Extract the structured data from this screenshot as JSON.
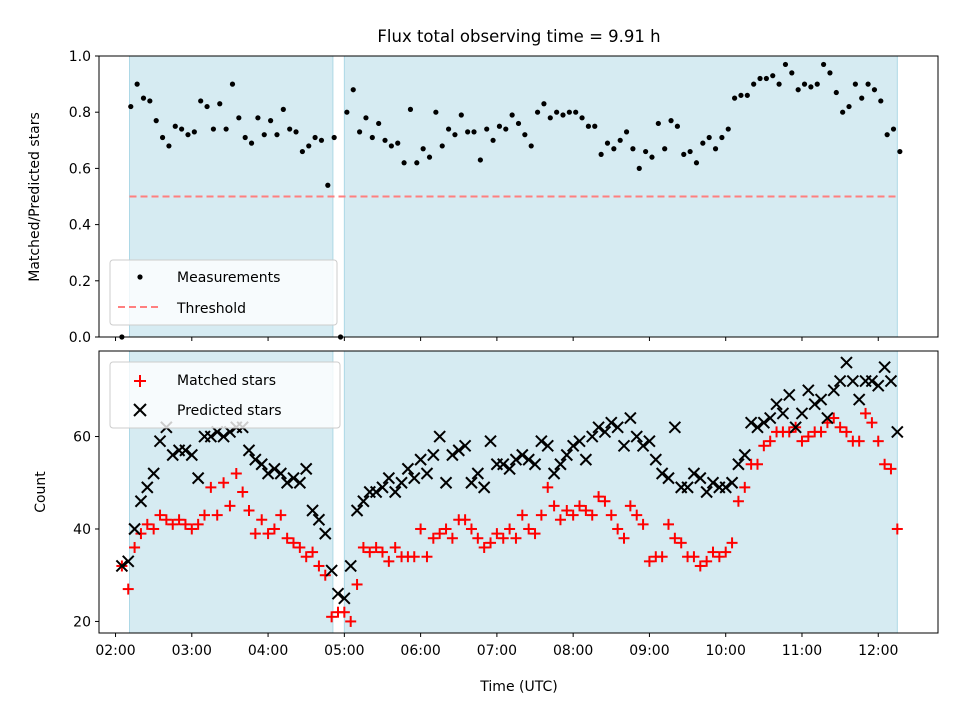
{
  "figure": {
    "title": "Flux total observing time = 9.91 h",
    "xlabel": "Time (UTC)",
    "colors": {
      "band": "#add8e6",
      "measurement": "#000000",
      "threshold": "#ff7f7f",
      "matched": "#ff0000",
      "predicted": "#000000"
    }
  },
  "chart_data": [
    {
      "type": "scatter",
      "panel": "ratio",
      "ylabel": "Matched/Predicted stars",
      "xlim": [
        "01:47",
        "12:47"
      ],
      "ylim": [
        0,
        1.0
      ],
      "xticks": [
        "02:00",
        "03:00",
        "04:00",
        "05:00",
        "06:00",
        "07:00",
        "08:00",
        "09:00",
        "10:00",
        "11:00",
        "12:00"
      ],
      "yticks": [
        "0.0",
        "0.2",
        "0.4",
        "0.6",
        "0.8",
        "1.0"
      ],
      "legend": "lower-left",
      "observing_windows": [
        [
          "02:11",
          "04:51"
        ],
        [
          "05:00",
          "12:15"
        ]
      ],
      "threshold": {
        "name": "Threshold",
        "y": 0.5,
        "x": [
          "02:11",
          "12:15"
        ]
      },
      "series": [
        {
          "name": "Measurements",
          "x": [
            "02:05",
            "02:12",
            "02:17",
            "02:22",
            "02:27",
            "02:32",
            "02:37",
            "02:42",
            "02:47",
            "02:52",
            "02:57",
            "03:02",
            "03:07",
            "03:12",
            "03:17",
            "03:22",
            "03:27",
            "03:32",
            "03:37",
            "03:42",
            "03:47",
            "03:52",
            "03:57",
            "04:02",
            "04:07",
            "04:12",
            "04:17",
            "04:22",
            "04:27",
            "04:32",
            "04:37",
            "04:42",
            "04:47",
            "04:52",
            "04:57",
            "05:02",
            "05:07",
            "05:12",
            "05:17",
            "05:22",
            "05:27",
            "05:32",
            "05:37",
            "05:42",
            "05:47",
            "05:52",
            "05:57",
            "06:02",
            "06:07",
            "06:12",
            "06:17",
            "06:22",
            "06:27",
            "06:32",
            "06:37",
            "06:42",
            "06:47",
            "06:52",
            "06:57",
            "07:02",
            "07:07",
            "07:12",
            "07:17",
            "07:22",
            "07:27",
            "07:32",
            "07:37",
            "07:42",
            "07:47",
            "07:52",
            "07:57",
            "08:02",
            "08:07",
            "08:12",
            "08:17",
            "08:22",
            "08:27",
            "08:32",
            "08:37",
            "08:42",
            "08:47",
            "08:52",
            "08:57",
            "09:02",
            "09:07",
            "09:12",
            "09:17",
            "09:22",
            "09:27",
            "09:32",
            "09:37",
            "09:42",
            "09:47",
            "09:52",
            "09:57",
            "10:02",
            "10:07",
            "10:12",
            "10:17",
            "10:22",
            "10:27",
            "10:32",
            "10:37",
            "10:42",
            "10:47",
            "10:52",
            "10:57",
            "11:02",
            "11:07",
            "11:12",
            "11:17",
            "11:22",
            "11:27",
            "11:32",
            "11:37",
            "11:42",
            "11:47",
            "11:52",
            "11:57",
            "12:02",
            "12:07",
            "12:12",
            "12:17"
          ],
          "y": [
            0.0,
            0.82,
            0.9,
            0.85,
            0.84,
            0.77,
            0.71,
            0.68,
            0.75,
            0.74,
            0.72,
            0.73,
            0.84,
            0.82,
            0.74,
            0.83,
            0.74,
            0.9,
            0.78,
            0.71,
            0.69,
            0.78,
            0.72,
            0.77,
            0.72,
            0.81,
            0.74,
            0.73,
            0.66,
            0.68,
            0.71,
            0.7,
            0.54,
            0.71,
            0.0,
            0.8,
            0.88,
            0.73,
            0.78,
            0.71,
            0.76,
            0.7,
            0.68,
            0.69,
            0.62,
            0.81,
            0.62,
            0.67,
            0.64,
            0.8,
            0.68,
            0.74,
            0.72,
            0.79,
            0.73,
            0.73,
            0.63,
            0.74,
            0.7,
            0.75,
            0.74,
            0.79,
            0.76,
            0.72,
            0.68,
            0.8,
            0.83,
            0.78,
            0.8,
            0.79,
            0.8,
            0.8,
            0.78,
            0.75,
            0.75,
            0.65,
            0.69,
            0.67,
            0.7,
            0.73,
            0.67,
            0.6,
            0.66,
            0.64,
            0.76,
            0.67,
            0.77,
            0.75,
            0.65,
            0.66,
            0.62,
            0.69,
            0.71,
            0.67,
            0.71,
            0.74,
            0.85,
            0.86,
            0.86,
            0.9,
            0.92,
            0.92,
            0.93,
            0.9,
            0.97,
            0.94,
            0.88,
            0.9,
            0.89,
            0.9,
            0.97,
            0.94,
            0.87,
            0.8,
            0.82,
            0.9,
            0.85,
            0.9,
            0.88,
            0.84,
            0.72,
            0.74,
            0.66
          ]
        }
      ]
    },
    {
      "type": "scatter",
      "panel": "counts",
      "ylabel": "Count",
      "xlim": [
        "01:47",
        "12:47"
      ],
      "ylim": [
        17.5,
        78.5
      ],
      "xticks": [
        "02:00",
        "03:00",
        "04:00",
        "05:00",
        "06:00",
        "07:00",
        "08:00",
        "09:00",
        "10:00",
        "11:00",
        "12:00"
      ],
      "yticks": [
        "20",
        "40",
        "60"
      ],
      "legend": "upper-left",
      "observing_windows": [
        [
          "02:11",
          "04:51"
        ],
        [
          "05:00",
          "12:15"
        ]
      ],
      "x": [
        "02:05",
        "02:10",
        "02:15",
        "02:20",
        "02:25",
        "02:30",
        "02:35",
        "02:40",
        "02:45",
        "02:50",
        "02:55",
        "03:00",
        "03:05",
        "03:10",
        "03:15",
        "03:20",
        "03:25",
        "03:30",
        "03:35",
        "03:40",
        "03:45",
        "03:50",
        "03:55",
        "04:00",
        "04:05",
        "04:10",
        "04:15",
        "04:20",
        "04:25",
        "04:30",
        "04:35",
        "04:40",
        "04:45",
        "04:50",
        "04:55",
        "05:00",
        "05:05",
        "05:10",
        "05:15",
        "05:20",
        "05:25",
        "05:30",
        "05:35",
        "05:40",
        "05:45",
        "05:50",
        "05:55",
        "06:00",
        "06:05",
        "06:10",
        "06:15",
        "06:20",
        "06:25",
        "06:30",
        "06:35",
        "06:40",
        "06:45",
        "06:50",
        "06:55",
        "07:00",
        "07:05",
        "07:10",
        "07:15",
        "07:20",
        "07:25",
        "07:30",
        "07:35",
        "07:40",
        "07:45",
        "07:50",
        "07:55",
        "08:00",
        "08:05",
        "08:10",
        "08:15",
        "08:20",
        "08:25",
        "08:30",
        "08:35",
        "08:40",
        "08:45",
        "08:50",
        "08:55",
        "09:00",
        "09:05",
        "09:10",
        "09:15",
        "09:20",
        "09:25",
        "09:30",
        "09:35",
        "09:40",
        "09:45",
        "09:50",
        "09:55",
        "10:00",
        "10:05",
        "10:10",
        "10:15",
        "10:20",
        "10:25",
        "10:30",
        "10:35",
        "10:40",
        "10:45",
        "10:50",
        "10:55",
        "11:00",
        "11:05",
        "11:10",
        "11:15",
        "11:20",
        "11:25",
        "11:30",
        "11:35",
        "11:40",
        "11:45",
        "11:50",
        "11:55",
        "12:00",
        "12:05",
        "12:10",
        "12:15"
      ],
      "series": [
        {
          "name": "Matched stars",
          "values": [
            32,
            27,
            36,
            39,
            41,
            40,
            43,
            42,
            41,
            42,
            41,
            40,
            41,
            43,
            49,
            43,
            50,
            45,
            52,
            48,
            44,
            39,
            42,
            39,
            40,
            43,
            38,
            37,
            36,
            34,
            35,
            32,
            30,
            21,
            22,
            22,
            20,
            28,
            36,
            35,
            36,
            35,
            33,
            36,
            34,
            34,
            34,
            40,
            34,
            38,
            39,
            40,
            38,
            42,
            42,
            40,
            38,
            36,
            37,
            39,
            38,
            40,
            38,
            43,
            40,
            39,
            43,
            49,
            45,
            42,
            44,
            43,
            45,
            44,
            43,
            47,
            46,
            43,
            40,
            38,
            45,
            43,
            41,
            33,
            34,
            34,
            41,
            38,
            37,
            34,
            34,
            32,
            33,
            35,
            34,
            35,
            37,
            46,
            49,
            54,
            54,
            58,
            59,
            61,
            61,
            61,
            62,
            59,
            60,
            61,
            61,
            63,
            64,
            62,
            61,
            59,
            59,
            65,
            63,
            59,
            54,
            53,
            40
          ]
        },
        {
          "name": "Predicted stars",
          "values": [
            32,
            33,
            40,
            46,
            49,
            52,
            59,
            62,
            56,
            57,
            57,
            56,
            51,
            60,
            60,
            61,
            60,
            61,
            62,
            62,
            57,
            55,
            54,
            52,
            53,
            52,
            50,
            51,
            50,
            53,
            44,
            42,
            39,
            31,
            26,
            25,
            32,
            44,
            46,
            48,
            48,
            49,
            51,
            48,
            50,
            53,
            51,
            55,
            52,
            56,
            60,
            50,
            56,
            57,
            58,
            50,
            52,
            49,
            59,
            54,
            54,
            53,
            55,
            56,
            55,
            54,
            59,
            58,
            52,
            54,
            56,
            58,
            59,
            55,
            60,
            62,
            61,
            63,
            62,
            58,
            64,
            60,
            58,
            59,
            55,
            52,
            51,
            62,
            49,
            49,
            52,
            51,
            48,
            50,
            49,
            49,
            50,
            54,
            56,
            63,
            62,
            63,
            64,
            67,
            65,
            69,
            62,
            65,
            70,
            67,
            68,
            64,
            70,
            72,
            76,
            72,
            68,
            72,
            72,
            71,
            75,
            72,
            61
          ]
        }
      ]
    }
  ]
}
